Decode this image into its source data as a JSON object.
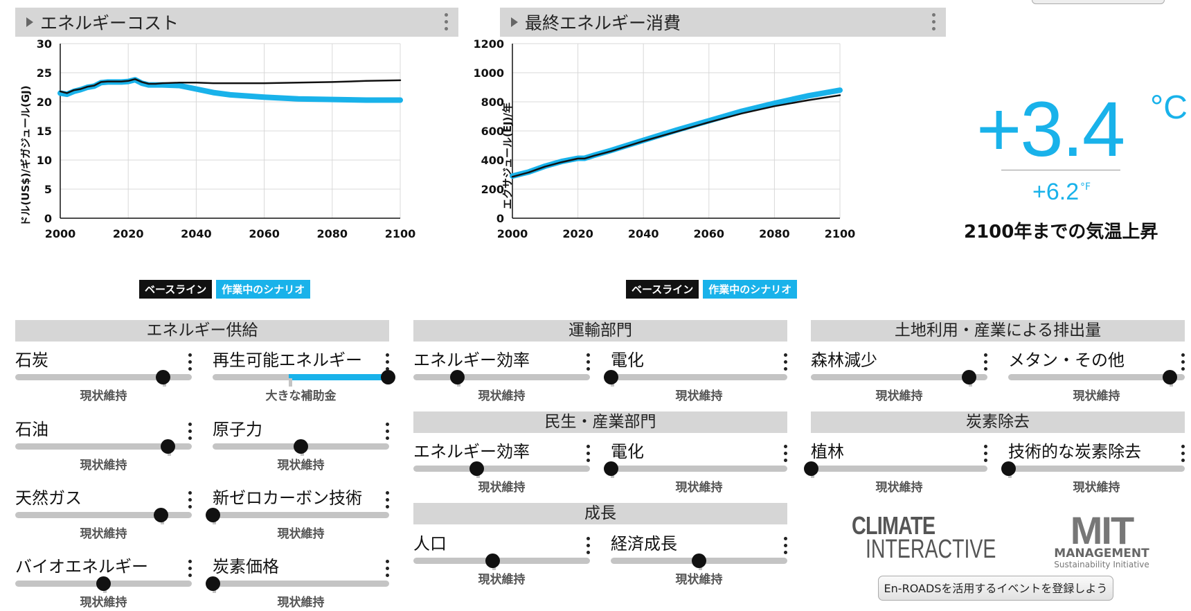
{
  "charts": {
    "energy_cost": {
      "title": "エネルギーコスト",
      "ylabel": "ドル(US$)/ギガジュール(GJ)",
      "yticks": [
        "0",
        "5",
        "10",
        "15",
        "20",
        "25",
        "30"
      ],
      "xticks": [
        "2000",
        "2020",
        "2040",
        "2060",
        "2080",
        "2100"
      ],
      "legend": {
        "baseline": "ベースライン",
        "current": "作業中のシナリオ"
      }
    },
    "final_energy": {
      "title": "最終エネルギー消費",
      "ylabel": "エクサジュール(EJ)/年",
      "yticks": [
        "0",
        "200",
        "400",
        "600",
        "800",
        "1000",
        "1200"
      ],
      "xticks": [
        "2000",
        "2020",
        "2040",
        "2060",
        "2080",
        "2100"
      ],
      "legend": {
        "baseline": "ベースライン",
        "current": "作業中のシナリオ"
      }
    }
  },
  "chart_data": [
    {
      "type": "line",
      "title": "エネルギーコスト",
      "ylabel": "ドル(US$)/ギガジュール(GJ)",
      "xlim": [
        2000,
        2100
      ],
      "ylim": [
        0,
        30
      ],
      "x": [
        2000,
        2002,
        2004,
        2006,
        2008,
        2010,
        2012,
        2014,
        2016,
        2018,
        2020,
        2022,
        2024,
        2026,
        2028,
        2030,
        2035,
        2040,
        2045,
        2050,
        2060,
        2070,
        2080,
        2090,
        2100
      ],
      "series": [
        {
          "name": "ベースライン",
          "color": "#111111",
          "values": [
            21.8,
            21.5,
            22.0,
            22.2,
            22.6,
            22.8,
            23.4,
            23.5,
            23.5,
            23.5,
            23.6,
            23.9,
            23.4,
            23.1,
            23.1,
            23.2,
            23.3,
            23.3,
            23.2,
            23.2,
            23.2,
            23.3,
            23.4,
            23.6,
            23.7
          ]
        },
        {
          "name": "作業中のシナリオ",
          "color": "#19b2ea",
          "values": [
            21.5,
            21.3,
            21.8,
            22.1,
            22.5,
            22.7,
            23.3,
            23.4,
            23.4,
            23.4,
            23.5,
            23.8,
            23.2,
            22.9,
            22.9,
            22.9,
            22.8,
            22.2,
            21.6,
            21.2,
            20.8,
            20.5,
            20.4,
            20.3,
            20.3
          ]
        }
      ]
    },
    {
      "type": "line",
      "title": "最終エネルギー消費",
      "ylabel": "エクサジュール(EJ)/年",
      "xlim": [
        2000,
        2100
      ],
      "ylim": [
        0,
        1200
      ],
      "x": [
        2000,
        2005,
        2010,
        2015,
        2020,
        2022,
        2025,
        2030,
        2040,
        2050,
        2060,
        2070,
        2080,
        2090,
        2100
      ],
      "series": [
        {
          "name": "ベースライン",
          "color": "#111111",
          "values": [
            285,
            315,
            355,
            385,
            410,
            410,
            430,
            460,
            530,
            595,
            660,
            720,
            770,
            810,
            845
          ]
        },
        {
          "name": "作業中のシナリオ",
          "color": "#19b2ea",
          "values": [
            290,
            318,
            358,
            390,
            412,
            412,
            433,
            465,
            535,
            605,
            670,
            735,
            790,
            840,
            880
          ]
        }
      ]
    }
  ],
  "temperature": {
    "celsius": "+3.4",
    "celsius_unit": "°C",
    "fahrenheit": "+6.2",
    "fahrenheit_unit": "°F",
    "label": "2100年までの気温上昇"
  },
  "sections": {
    "energy_supply": "エネルギー供給",
    "transport": "運輸部門",
    "buildings": "民生・産業部門",
    "growth": "成長",
    "land": "土地利用・産業による排出量",
    "carbon_removal": "炭素除去"
  },
  "sliders": {
    "coal": {
      "label": "石炭",
      "status": "現状維持",
      "value": 0.84
    },
    "renewables": {
      "label": "再生可能エネルギー",
      "status": "大きな補助金",
      "value": 1.0
    },
    "oil": {
      "label": "石油",
      "status": "現状維持",
      "value": 0.87
    },
    "nuclear": {
      "label": "原子力",
      "status": "現状維持",
      "value": 0.5
    },
    "natural_gas": {
      "label": "天然ガス",
      "status": "現状維持",
      "value": 0.83
    },
    "new_tech": {
      "label": "新ゼロカーボン技術",
      "status": "現状維持",
      "value": 0.0
    },
    "bioenergy": {
      "label": "バイオエネルギー",
      "status": "現状維持",
      "value": 0.5
    },
    "carbon_price": {
      "label": "炭素価格",
      "status": "現状維持",
      "value": 0.0
    },
    "transport_efficiency": {
      "label": "エネルギー効率",
      "status": "現状維持",
      "value": 0.25
    },
    "transport_electrification": {
      "label": "電化",
      "status": "現状維持",
      "value": 0.0
    },
    "buildings_efficiency": {
      "label": "エネルギー効率",
      "status": "現状維持",
      "value": 0.36
    },
    "buildings_electrification": {
      "label": "電化",
      "status": "現状維持",
      "value": 0.0
    },
    "population": {
      "label": "人口",
      "status": "現状維持",
      "value": 0.45
    },
    "economic_growth": {
      "label": "経済成長",
      "status": "現状維持",
      "value": 0.5
    },
    "deforestation": {
      "label": "森林減少",
      "status": "現状維持",
      "value": 0.9
    },
    "methane": {
      "label": "メタン・その他",
      "status": "現状維持",
      "value": 0.92
    },
    "afforestation": {
      "label": "植林",
      "status": "現状維持",
      "value": 0.0
    },
    "tech_removal": {
      "label": "技術的な炭素除去",
      "status": "現状維持",
      "value": 0.0
    }
  },
  "logos": {
    "climate_interactive_line1": "CLIMATE",
    "climate_interactive_line2": "INTERACTIVE",
    "mit_big": "MIT",
    "mit_management": "MANAGEMENT",
    "mit_sub": "Sustainability Initiative"
  },
  "event_button": "En-ROADSを活用するイベントを登録しよう",
  "colors": {
    "accent": "#19b2ea",
    "baseline": "#111111",
    "header_bg": "#d6d6d6"
  }
}
